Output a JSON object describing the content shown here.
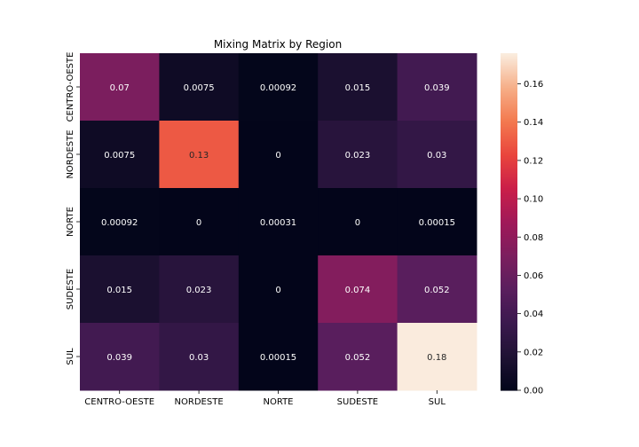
{
  "chart_data": {
    "type": "heatmap",
    "title": "Mixing Matrix by Region",
    "xlabel": "",
    "ylabel": "",
    "x_categories": [
      "CENTRO-OESTE",
      "NORDESTE",
      "NORTE",
      "SUDESTE",
      "SUL"
    ],
    "y_categories": [
      "CENTRO-OESTE",
      "NORDESTE",
      "NORTE",
      "SUDESTE",
      "SUL"
    ],
    "values": [
      [
        0.07,
        0.0075,
        0.00092,
        0.015,
        0.039
      ],
      [
        0.0075,
        0.13,
        0,
        0.023,
        0.03
      ],
      [
        0.00092,
        0,
        0.00031,
        0,
        0.00015
      ],
      [
        0.015,
        0.023,
        0,
        0.074,
        0.052
      ],
      [
        0.039,
        0.03,
        0.00015,
        0.052,
        0.176
      ]
    ],
    "annotations": [
      [
        "0.07",
        "0.0075",
        "0.00092",
        "0.015",
        "0.039"
      ],
      [
        "0.0075",
        "0.13",
        "0",
        "0.023",
        "0.03"
      ],
      [
        "0.00092",
        "0",
        "0.00031",
        "0",
        "0.00015"
      ],
      [
        "0.015",
        "0.023",
        "0",
        "0.074",
        "0.052"
      ],
      [
        "0.039",
        "0.03",
        "0.00015",
        "0.052",
        "0.18"
      ]
    ],
    "colorbar": {
      "range": [
        0,
        0.176
      ],
      "ticks": [
        0,
        0.02,
        0.04,
        0.06,
        0.08,
        0.1,
        0.12,
        0.14,
        0.16
      ],
      "tick_labels": [
        "0.00",
        "0.02",
        "0.04",
        "0.06",
        "0.08",
        "0.10",
        "0.12",
        "0.14",
        "0.16"
      ],
      "colormap": "rocket"
    }
  }
}
